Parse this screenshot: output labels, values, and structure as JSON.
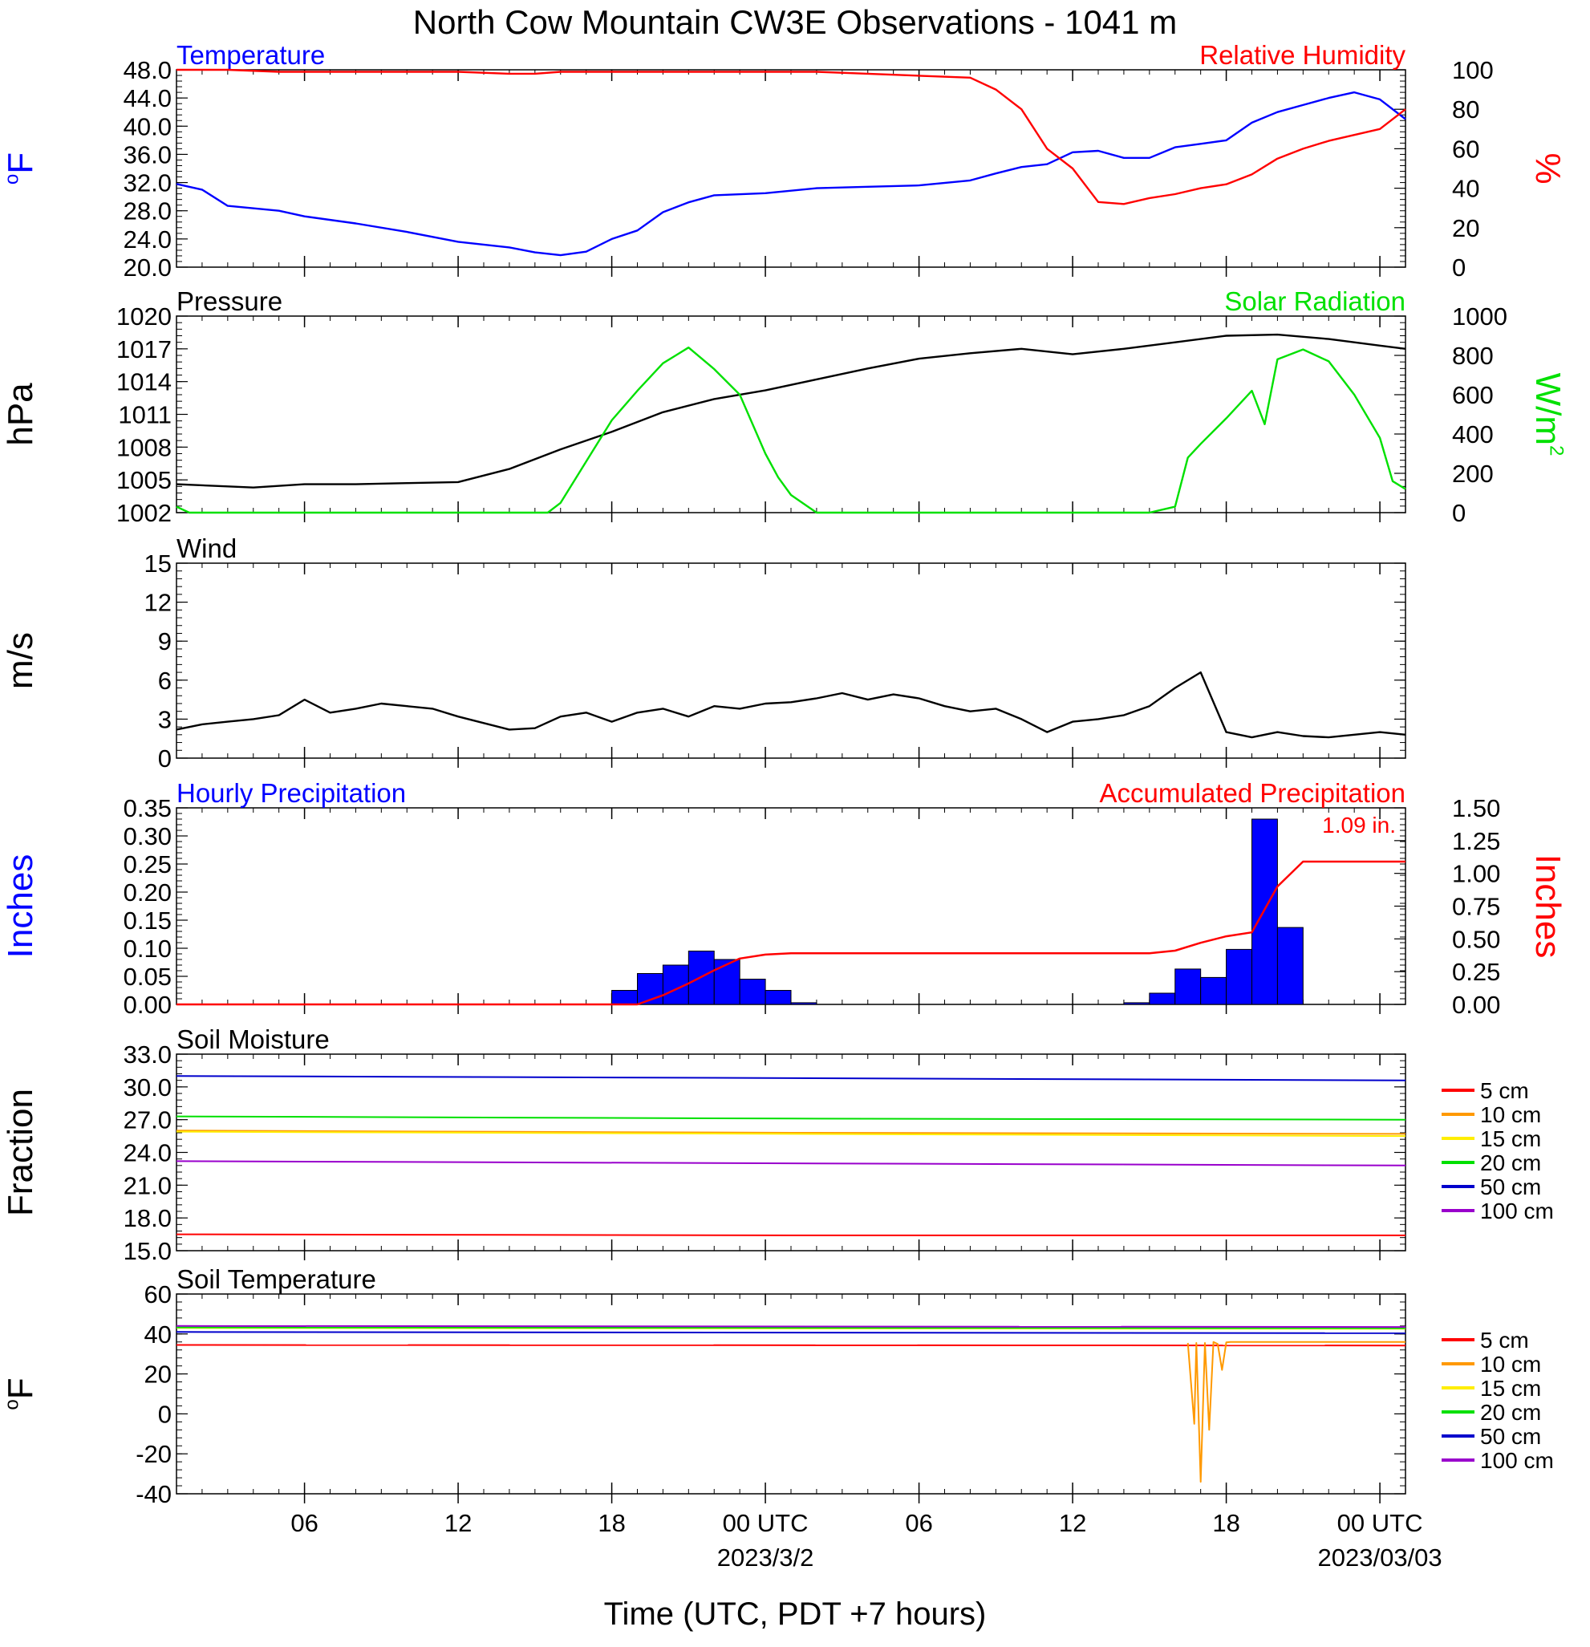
{
  "title": "North Cow Mountain CW3E Observations - 1041 m",
  "xlabel": "Time (UTC, PDT +7 hours)",
  "x_axis": {
    "start": "2023-03-01T01:00Z",
    "end": "2023-03-03T01:00Z",
    "ticks": [
      {
        "t": "2023-03-01T06:00Z",
        "label": "06",
        "sublabel": ""
      },
      {
        "t": "2023-03-01T12:00Z",
        "label": "12",
        "sublabel": ""
      },
      {
        "t": "2023-03-01T18:00Z",
        "label": "18",
        "sublabel": ""
      },
      {
        "t": "2023-03-02T00:00Z",
        "label": "00 UTC",
        "sublabel": "2023/3/2"
      },
      {
        "t": "2023-03-02T06:00Z",
        "label": "06",
        "sublabel": ""
      },
      {
        "t": "2023-03-02T12:00Z",
        "label": "12",
        "sublabel": ""
      },
      {
        "t": "2023-03-02T18:00Z",
        "label": "18",
        "sublabel": ""
      },
      {
        "t": "2023-03-03T00:00Z",
        "label": "00 UTC",
        "sublabel": "2023/03/03"
      }
    ]
  },
  "colors": {
    "temperature": "#0000ff",
    "humidity": "#ff0000",
    "pressure": "#000000",
    "solar": "#00e000",
    "wind": "#000000",
    "barbs": "#ff0000",
    "hourly_precip": "#0000ff",
    "accum_precip": "#ff0000",
    "d5": "#ff0000",
    "d10": "#ff9900",
    "d15": "#ffee00",
    "d20": "#00e000",
    "d50": "#0000cc",
    "d100": "#9900cc"
  },
  "chart_data": [
    {
      "type": "line",
      "title_left": "Temperature",
      "title_right": "Relative Humidity",
      "ylabel_left": "oF",
      "ylabel_right": "%",
      "ylim_left": [
        20,
        48
      ],
      "yticks_left": [
        "20.0",
        "24.0",
        "28.0",
        "32.0",
        "36.0",
        "40.0",
        "44.0",
        "48.0"
      ],
      "ylim_right": [
        0,
        100
      ],
      "yticks_right": [
        "0",
        "20",
        "40",
        "60",
        "80",
        "100"
      ],
      "x": [
        "2023-03-01T01:00Z",
        "2023-03-01T02:00Z",
        "2023-03-01T03:00Z",
        "2023-03-01T05:00Z",
        "2023-03-01T06:00Z",
        "2023-03-01T08:00Z",
        "2023-03-01T10:00Z",
        "2023-03-01T12:00Z",
        "2023-03-01T14:00Z",
        "2023-03-01T15:00Z",
        "2023-03-01T16:00Z",
        "2023-03-01T17:00Z",
        "2023-03-01T18:00Z",
        "2023-03-01T19:00Z",
        "2023-03-01T20:00Z",
        "2023-03-01T21:00Z",
        "2023-03-01T22:00Z",
        "2023-03-02T00:00Z",
        "2023-03-02T02:00Z",
        "2023-03-02T04:00Z",
        "2023-03-02T06:00Z",
        "2023-03-02T08:00Z",
        "2023-03-02T09:00Z",
        "2023-03-02T10:00Z",
        "2023-03-02T11:00Z",
        "2023-03-02T12:00Z",
        "2023-03-02T13:00Z",
        "2023-03-02T14:00Z",
        "2023-03-02T15:00Z",
        "2023-03-02T16:00Z",
        "2023-03-02T17:00Z",
        "2023-03-02T18:00Z",
        "2023-03-02T19:00Z",
        "2023-03-02T20:00Z",
        "2023-03-02T21:00Z",
        "2023-03-02T22:00Z",
        "2023-03-02T23:00Z",
        "2023-03-03T00:00Z",
        "2023-03-03T01:00Z"
      ],
      "series": [
        {
          "name": "Temperature",
          "axis": "left",
          "color": "temperature",
          "values": [
            31.8,
            31.0,
            28.7,
            28.0,
            27.2,
            26.2,
            25.0,
            23.6,
            22.8,
            22.1,
            21.7,
            22.2,
            24.0,
            25.2,
            27.8,
            29.2,
            30.2,
            30.5,
            31.2,
            31.4,
            31.6,
            32.3,
            33.3,
            34.2,
            34.6,
            36.3,
            36.5,
            35.5,
            35.5,
            37.0,
            37.5,
            38.0,
            40.5,
            42.0,
            43.0,
            44.0,
            44.8,
            43.8,
            41.0
          ]
        },
        {
          "name": "Relative Humidity",
          "axis": "right",
          "color": "humidity",
          "values": [
            100,
            100,
            100,
            99,
            99,
            99,
            99,
            99,
            98,
            98,
            99,
            99,
            99,
            99,
            99,
            99,
            99,
            99,
            99,
            98,
            97,
            96,
            90,
            80,
            60,
            50,
            33,
            32,
            35,
            37,
            40,
            42,
            47,
            55,
            60,
            64,
            67,
            70,
            80
          ]
        }
      ]
    },
    {
      "type": "line",
      "title_left": "Pressure",
      "title_right": "Solar Radiation",
      "ylabel_left": "hPa",
      "ylabel_right": "W/m2",
      "ylim_left": [
        1002,
        1020
      ],
      "yticks_left": [
        "1002",
        "1005",
        "1008",
        "1011",
        "1014",
        "1017",
        "1020"
      ],
      "ylim_right": [
        0,
        1000
      ],
      "yticks_right": [
        "0",
        "200",
        "400",
        "600",
        "800",
        "1000"
      ],
      "series": [
        {
          "name": "Pressure",
          "axis": "left",
          "color": "pressure",
          "x": [
            "2023-03-01T01:00Z",
            "2023-03-01T03:00Z",
            "2023-03-01T04:00Z",
            "2023-03-01T06:00Z",
            "2023-03-01T08:00Z",
            "2023-03-01T10:00Z",
            "2023-03-01T12:00Z",
            "2023-03-01T14:00Z",
            "2023-03-01T16:00Z",
            "2023-03-01T18:00Z",
            "2023-03-01T20:00Z",
            "2023-03-01T22:00Z",
            "2023-03-02T00:00Z",
            "2023-03-02T02:00Z",
            "2023-03-02T04:00Z",
            "2023-03-02T06:00Z",
            "2023-03-02T08:00Z",
            "2023-03-02T10:00Z",
            "2023-03-02T12:00Z",
            "2023-03-02T14:00Z",
            "2023-03-02T16:00Z",
            "2023-03-02T18:00Z",
            "2023-03-02T20:00Z",
            "2023-03-02T22:00Z",
            "2023-03-03T00:00Z",
            "2023-03-03T01:00Z"
          ],
          "values": [
            1004.6,
            1004.4,
            1004.3,
            1004.6,
            1004.6,
            1004.7,
            1004.8,
            1006.0,
            1007.8,
            1009.4,
            1011.2,
            1012.4,
            1013.2,
            1014.2,
            1015.2,
            1016.1,
            1016.6,
            1017.0,
            1016.5,
            1017.0,
            1017.6,
            1018.2,
            1018.3,
            1017.9,
            1017.3,
            1017.0
          ]
        },
        {
          "name": "Solar Radiation",
          "axis": "right",
          "color": "solar",
          "x": [
            "2023-03-01T01:00Z",
            "2023-03-01T01:30Z",
            "2023-03-01T15:30Z",
            "2023-03-01T16:00Z",
            "2023-03-01T17:00Z",
            "2023-03-01T18:00Z",
            "2023-03-01T19:00Z",
            "2023-03-01T20:00Z",
            "2023-03-01T20:30Z",
            "2023-03-01T21:00Z",
            "2023-03-01T22:00Z",
            "2023-03-01T23:00Z",
            "2023-03-02T00:00Z",
            "2023-03-02T00:30Z",
            "2023-03-02T01:00Z",
            "2023-03-02T02:00Z",
            "2023-03-02T15:00Z",
            "2023-03-02T16:00Z",
            "2023-03-02T16:30Z",
            "2023-03-02T17:00Z",
            "2023-03-02T18:00Z",
            "2023-03-02T19:00Z",
            "2023-03-02T19:30Z",
            "2023-03-02T20:00Z",
            "2023-03-02T21:00Z",
            "2023-03-02T22:00Z",
            "2023-03-02T23:00Z",
            "2023-03-03T00:00Z",
            "2023-03-03T00:30Z",
            "2023-03-03T01:00Z"
          ],
          "values": [
            30,
            0,
            0,
            50,
            260,
            470,
            620,
            760,
            800,
            840,
            730,
            600,
            300,
            180,
            90,
            0,
            0,
            30,
            280,
            350,
            480,
            620,
            450,
            780,
            830,
            770,
            600,
            380,
            160,
            120
          ]
        }
      ]
    },
    {
      "type": "line",
      "title_left": "Wind",
      "ylabel_left": "m/s",
      "ylim_left": [
        0,
        15
      ],
      "yticks_left": [
        "0",
        "3",
        "6",
        "9",
        "12",
        "15"
      ],
      "x": [
        "2023-03-01T01:00Z",
        "2023-03-01T02:00Z",
        "2023-03-01T03:00Z",
        "2023-03-01T04:00Z",
        "2023-03-01T05:00Z",
        "2023-03-01T06:00Z",
        "2023-03-01T07:00Z",
        "2023-03-01T08:00Z",
        "2023-03-01T09:00Z",
        "2023-03-01T10:00Z",
        "2023-03-01T11:00Z",
        "2023-03-01T12:00Z",
        "2023-03-01T13:00Z",
        "2023-03-01T14:00Z",
        "2023-03-01T15:00Z",
        "2023-03-01T16:00Z",
        "2023-03-01T17:00Z",
        "2023-03-01T18:00Z",
        "2023-03-01T19:00Z",
        "2023-03-01T20:00Z",
        "2023-03-01T21:00Z",
        "2023-03-01T22:00Z",
        "2023-03-01T23:00Z",
        "2023-03-02T00:00Z",
        "2023-03-02T01:00Z",
        "2023-03-02T02:00Z",
        "2023-03-02T03:00Z",
        "2023-03-02T04:00Z",
        "2023-03-02T05:00Z",
        "2023-03-02T06:00Z",
        "2023-03-02T07:00Z",
        "2023-03-02T08:00Z",
        "2023-03-02T09:00Z",
        "2023-03-02T10:00Z",
        "2023-03-02T11:00Z",
        "2023-03-02T12:00Z",
        "2023-03-02T13:00Z",
        "2023-03-02T14:00Z",
        "2023-03-02T15:00Z",
        "2023-03-02T16:00Z",
        "2023-03-02T17:00Z",
        "2023-03-02T18:00Z",
        "2023-03-02T19:00Z",
        "2023-03-02T20:00Z",
        "2023-03-02T21:00Z",
        "2023-03-02T22:00Z",
        "2023-03-02T23:00Z",
        "2023-03-03T00:00Z",
        "2023-03-03T01:00Z"
      ],
      "series": [
        {
          "name": "Wind speed",
          "color": "wind",
          "values": [
            2.2,
            2.6,
            2.8,
            3.0,
            3.3,
            4.5,
            3.5,
            3.8,
            4.2,
            4.0,
            3.8,
            3.2,
            2.7,
            2.2,
            2.3,
            3.2,
            3.5,
            2.8,
            3.5,
            3.8,
            3.2,
            4.0,
            3.8,
            4.2,
            4.3,
            4.6,
            5.0,
            4.5,
            4.9,
            4.6,
            4.0,
            3.6,
            3.8,
            3.0,
            2.0,
            2.8,
            3.0,
            3.3,
            4.0,
            5.4,
            6.6,
            2.0,
            1.6,
            2.0,
            1.7,
            1.6,
            1.8,
            2.0,
            1.8
          ]
        }
      ]
    },
    {
      "type": "bar",
      "title_left": "Hourly Precipitation",
      "title_right": "Accumulated Precipitation",
      "ylabel_left": "Inches",
      "ylabel_right": "Inches",
      "annotation": "1.09 in.",
      "ylim_left": [
        0,
        0.35
      ],
      "yticks_left": [
        "0.00",
        "0.05",
        "0.10",
        "0.15",
        "0.20",
        "0.25",
        "0.30",
        "0.35"
      ],
      "ylim_right": [
        0,
        1.5
      ],
      "yticks_right": [
        "0.00",
        "0.25",
        "0.50",
        "0.75",
        "1.00",
        "1.25",
        "1.50"
      ],
      "series": [
        {
          "name": "Hourly Precipitation",
          "axis": "left",
          "color": "hourly_precip",
          "x": [
            "2023-03-01T19:00Z",
            "2023-03-01T20:00Z",
            "2023-03-01T21:00Z",
            "2023-03-01T22:00Z",
            "2023-03-01T23:00Z",
            "2023-03-02T00:00Z",
            "2023-03-02T01:00Z",
            "2023-03-02T02:00Z",
            "2023-03-02T15:00Z",
            "2023-03-02T16:00Z",
            "2023-03-02T17:00Z",
            "2023-03-02T18:00Z",
            "2023-03-02T19:00Z",
            "2023-03-02T20:00Z",
            "2023-03-02T21:00Z"
          ],
          "values": [
            0.025,
            0.055,
            0.07,
            0.095,
            0.08,
            0.045,
            0.025,
            0.003,
            0.003,
            0.02,
            0.063,
            0.048,
            0.098,
            0.33,
            0.137
          ]
        },
        {
          "name": "Accumulated Precipitation",
          "axis": "right",
          "color": "accum_precip",
          "x": [
            "2023-03-01T01:00Z",
            "2023-03-01T18:00Z",
            "2023-03-01T19:00Z",
            "2023-03-01T20:00Z",
            "2023-03-01T21:00Z",
            "2023-03-01T22:00Z",
            "2023-03-01T23:00Z",
            "2023-03-02T00:00Z",
            "2023-03-02T01:00Z",
            "2023-03-02T02:00Z",
            "2023-03-02T15:00Z",
            "2023-03-02T16:00Z",
            "2023-03-02T17:00Z",
            "2023-03-02T18:00Z",
            "2023-03-02T19:00Z",
            "2023-03-02T20:00Z",
            "2023-03-02T21:00Z",
            "2023-03-03T01:00Z"
          ],
          "values": [
            0,
            0,
            0,
            0.07,
            0.16,
            0.26,
            0.35,
            0.38,
            0.39,
            0.39,
            0.39,
            0.41,
            0.47,
            0.52,
            0.55,
            0.9,
            1.09,
            1.09
          ]
        }
      ]
    },
    {
      "type": "line",
      "title_left": "Soil Moisture",
      "ylabel_left": "Fraction",
      "ylim_left": [
        15,
        33
      ],
      "yticks_left": [
        "15.0",
        "18.0",
        "21.0",
        "24.0",
        "27.0",
        "30.0",
        "33.0"
      ],
      "legend": "right",
      "x": [
        "2023-03-01T01:00Z",
        "2023-03-02T01:00Z",
        "2023-03-03T01:00Z"
      ],
      "series": [
        {
          "name": "5 cm",
          "color": "d5",
          "values": [
            16.5,
            16.4,
            16.4
          ]
        },
        {
          "name": "10 cm",
          "color": "d10",
          "values": [
            26.0,
            25.8,
            25.7
          ]
        },
        {
          "name": "15 cm",
          "color": "d15",
          "values": [
            25.9,
            25.7,
            25.5
          ]
        },
        {
          "name": "20 cm",
          "color": "d20",
          "values": [
            27.3,
            27.1,
            27.0
          ]
        },
        {
          "name": "50 cm",
          "color": "d50",
          "values": [
            31.0,
            30.8,
            30.6
          ]
        },
        {
          "name": "100 cm",
          "color": "d100",
          "values": [
            23.2,
            23.0,
            22.8
          ]
        }
      ]
    },
    {
      "type": "line",
      "title_left": "Soil Temperature",
      "ylabel_left": "oF",
      "ylim_left": [
        -40,
        60
      ],
      "yticks_left": [
        "-40",
        "-20",
        "0",
        "20",
        "40",
        "60"
      ],
      "legend": "right",
      "series": [
        {
          "name": "5 cm",
          "color": "d5",
          "x": [
            "2023-03-01T01:00Z",
            "2023-03-03T01:00Z"
          ],
          "values": [
            34.5,
            34.2
          ]
        },
        {
          "name": "10 cm",
          "color": "d10",
          "x": [
            "2023-03-02T16:30Z",
            "2023-03-02T16:45Z",
            "2023-03-02T16:50Z",
            "2023-03-02T17:00Z",
            "2023-03-02T17:10Z",
            "2023-03-02T17:20Z",
            "2023-03-02T17:30Z",
            "2023-03-02T17:40Z",
            "2023-03-02T17:50Z",
            "2023-03-02T18:00Z",
            "2023-03-02T18:10Z",
            "2023-03-02T18:20Z",
            "2023-03-03T01:00Z"
          ],
          "values": [
            35.5,
            -5,
            35.5,
            -34,
            35.5,
            -8,
            36.0,
            35.0,
            22,
            35.8,
            36.0,
            36.0,
            36.0
          ]
        },
        {
          "name": "15 cm",
          "color": "d15",
          "x": [
            "2023-03-01T01:00Z",
            "2023-03-03T01:00Z"
          ],
          "values": [
            43.0,
            42.6
          ]
        },
        {
          "name": "20 cm",
          "color": "d20",
          "x": [
            "2023-03-01T01:00Z",
            "2023-03-03T01:00Z"
          ],
          "values": [
            43.3,
            42.9
          ]
        },
        {
          "name": "50 cm",
          "color": "d50",
          "x": [
            "2023-03-01T01:00Z",
            "2023-03-03T01:00Z"
          ],
          "values": [
            41.0,
            40.4
          ]
        },
        {
          "name": "100 cm",
          "color": "d100",
          "x": [
            "2023-03-01T01:00Z",
            "2023-03-03T01:00Z"
          ],
          "values": [
            44.0,
            43.5
          ]
        }
      ]
    }
  ]
}
